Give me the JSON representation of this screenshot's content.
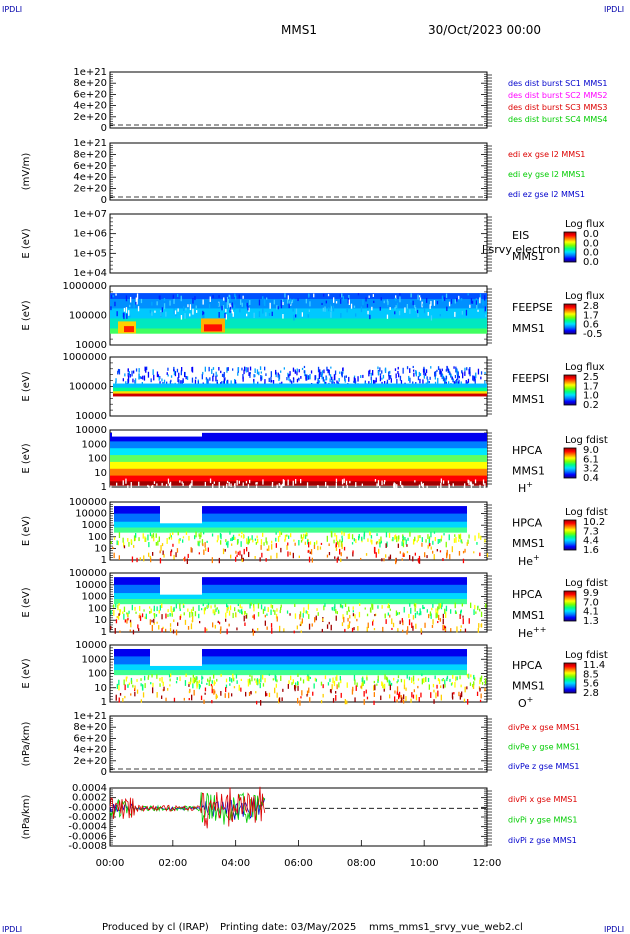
{
  "corners": {
    "top_left": "IPDLI",
    "top_right": "IPDLI",
    "bottom_left": "IPDLI",
    "bottom_right": "IPDLI"
  },
  "header": {
    "title": "MMS1",
    "date": "30/Oct/2023 00:00"
  },
  "footer": {
    "produced_by": "Produced by cl (IRAP)",
    "printing_date": "Printing date: 03/May/2025",
    "script_name": "mms_mms1_srvy_vue_web2.cl"
  },
  "colors": {
    "magenta": "#ff00ff",
    "red": "#dd0000",
    "green": "#00cc00",
    "blue": "#0000cc",
    "navy": "#0000aa",
    "axis": "#000000"
  },
  "colorbar_gradient": [
    "#1a007a",
    "#0000ff",
    "#0080ff",
    "#00e0ff",
    "#00ff80",
    "#80ff00",
    "#ffff00",
    "#ff8000",
    "#ff0000",
    "#a00000"
  ],
  "chart_data": {
    "type": "heatmap",
    "x_axis": {
      "range": [
        "00:00",
        "12:00"
      ],
      "tick_labels": [
        "00:00",
        "02:00",
        "04:00",
        "06:00",
        "08:00",
        "10:00",
        "12:00"
      ]
    },
    "panels": [
      {
        "id": "dist",
        "kind": "line",
        "ylabel": "",
        "yticks": [
          "1e+21",
          "8e+20",
          "6e+20",
          "4e+20",
          "2e+20",
          "0"
        ],
        "legend": [
          {
            "text": "des dist burst SC1 MMS1",
            "color": "#0000cc"
          },
          {
            "text": "des dist burst SC2 MMS2",
            "color": "#ff00ff"
          },
          {
            "text": "des dist burst SC3 MMS3",
            "color": "#dd0000"
          },
          {
            "text": "des dist burst SC4 MMS4",
            "color": "#00cc00"
          }
        ]
      },
      {
        "id": "edi",
        "kind": "line",
        "ylabel": "(mV/m)",
        "yticks": [
          "1e+21",
          "8e+20",
          "6e+20",
          "4e+20",
          "2e+20",
          "0"
        ],
        "legend": [
          {
            "text": "edi ex gse l2 MMS1",
            "color": "#dd0000"
          },
          {
            "text": "edi ey gse l2 MMS1",
            "color": "#00cc00"
          },
          {
            "text": "edi ez gse l2 MMS1",
            "color": "#0000cc"
          }
        ]
      },
      {
        "id": "eis",
        "kind": "spectrogram",
        "ylabel": "E (eV)",
        "yticks": [
          "1e+07",
          "1e+06",
          "1e+05",
          "1e+04"
        ],
        "labels": [
          "EIS",
          "MMS1"
        ],
        "overlay": "l srvy electron to",
        "colorbar": {
          "title": "Log flux",
          "ticks": [
            "0.0",
            "0.0",
            "0.0",
            "0.0"
          ]
        }
      },
      {
        "id": "feeps_e",
        "kind": "spectrogram",
        "ylabel": "E (eV)",
        "yticks": [
          "1000000",
          "100000",
          "10000"
        ],
        "labels": [
          "FEEPSE",
          "MMS1"
        ],
        "colorbar": {
          "title": "Log flux",
          "ticks": [
            "2.8",
            "1.7",
            "0.6",
            "-0.5"
          ]
        }
      },
      {
        "id": "feeps_i",
        "kind": "spectrogram",
        "ylabel": "E (eV)",
        "yticks": [
          "1000000",
          "100000",
          "10000"
        ],
        "labels": [
          "FEEPSI",
          "MMS1"
        ],
        "colorbar": {
          "title": "Log flux",
          "ticks": [
            "2.5",
            "1.7",
            "1.0",
            "0.2"
          ]
        }
      },
      {
        "id": "hpca_h",
        "kind": "spectrogram",
        "ylabel": "E (eV)",
        "yticks": [
          "10000",
          "1000",
          "100",
          "10",
          "1"
        ],
        "labels": [
          "HPCA",
          "MMS1"
        ],
        "species": "H",
        "charge": "+",
        "colorbar": {
          "title": "Log fdist",
          "ticks": [
            "9.0",
            "6.1",
            "3.2",
            "0.4"
          ]
        }
      },
      {
        "id": "hpca_he",
        "kind": "spectrogram",
        "ylabel": "E (eV)",
        "yticks": [
          "100000",
          "10000",
          "1000",
          "100",
          "10",
          "1"
        ],
        "labels": [
          "HPCA",
          "MMS1"
        ],
        "species": "He",
        "charge": "+",
        "colorbar": {
          "title": "Log fdist",
          "ticks": [
            "10.2",
            "7.3",
            "4.4",
            "1.6"
          ]
        }
      },
      {
        "id": "hpca_hepp",
        "kind": "spectrogram",
        "ylabel": "E (eV)",
        "yticks": [
          "100000",
          "10000",
          "1000",
          "100",
          "10",
          "1"
        ],
        "labels": [
          "HPCA",
          "MMS1"
        ],
        "species": "He",
        "charge": "++",
        "colorbar": {
          "title": "Log fdist",
          "ticks": [
            "9.9",
            "7.0",
            "4.1",
            "1.3"
          ]
        }
      },
      {
        "id": "hpca_o",
        "kind": "spectrogram",
        "ylabel": "E (eV)",
        "yticks": [
          "10000",
          "1000",
          "100",
          "10",
          "1"
        ],
        "labels": [
          "HPCA",
          "MMS1"
        ],
        "species": "O",
        "charge": "+",
        "colorbar": {
          "title": "Log fdist",
          "ticks": [
            "11.4",
            "8.5",
            "5.6",
            "2.8"
          ]
        }
      },
      {
        "id": "divpe",
        "kind": "line",
        "ylabel": "(nPa/km)",
        "yticks": [
          "1e+21",
          "8e+20",
          "6e+20",
          "4e+20",
          "2e+20",
          "0"
        ],
        "legend": [
          {
            "text": "divPe x gse MMS1",
            "color": "#dd0000"
          },
          {
            "text": "divPe y gse MMS1",
            "color": "#00cc00"
          },
          {
            "text": "divPe z gse MMS1",
            "color": "#0000cc"
          }
        ]
      },
      {
        "id": "divpi",
        "kind": "line",
        "ylabel": "(nPa/km)",
        "yticks": [
          "0.0004",
          "0.0002",
          "-0.0000",
          "-0.0002",
          "-0.0004",
          "-0.0006",
          "-0.0008"
        ],
        "legend": [
          {
            "text": "divPi x gse MMS1",
            "color": "#dd0000"
          },
          {
            "text": "divPi y gse MMS1",
            "color": "#00cc00"
          },
          {
            "text": "divPi z gse MMS1",
            "color": "#0000cc"
          }
        ]
      }
    ]
  }
}
